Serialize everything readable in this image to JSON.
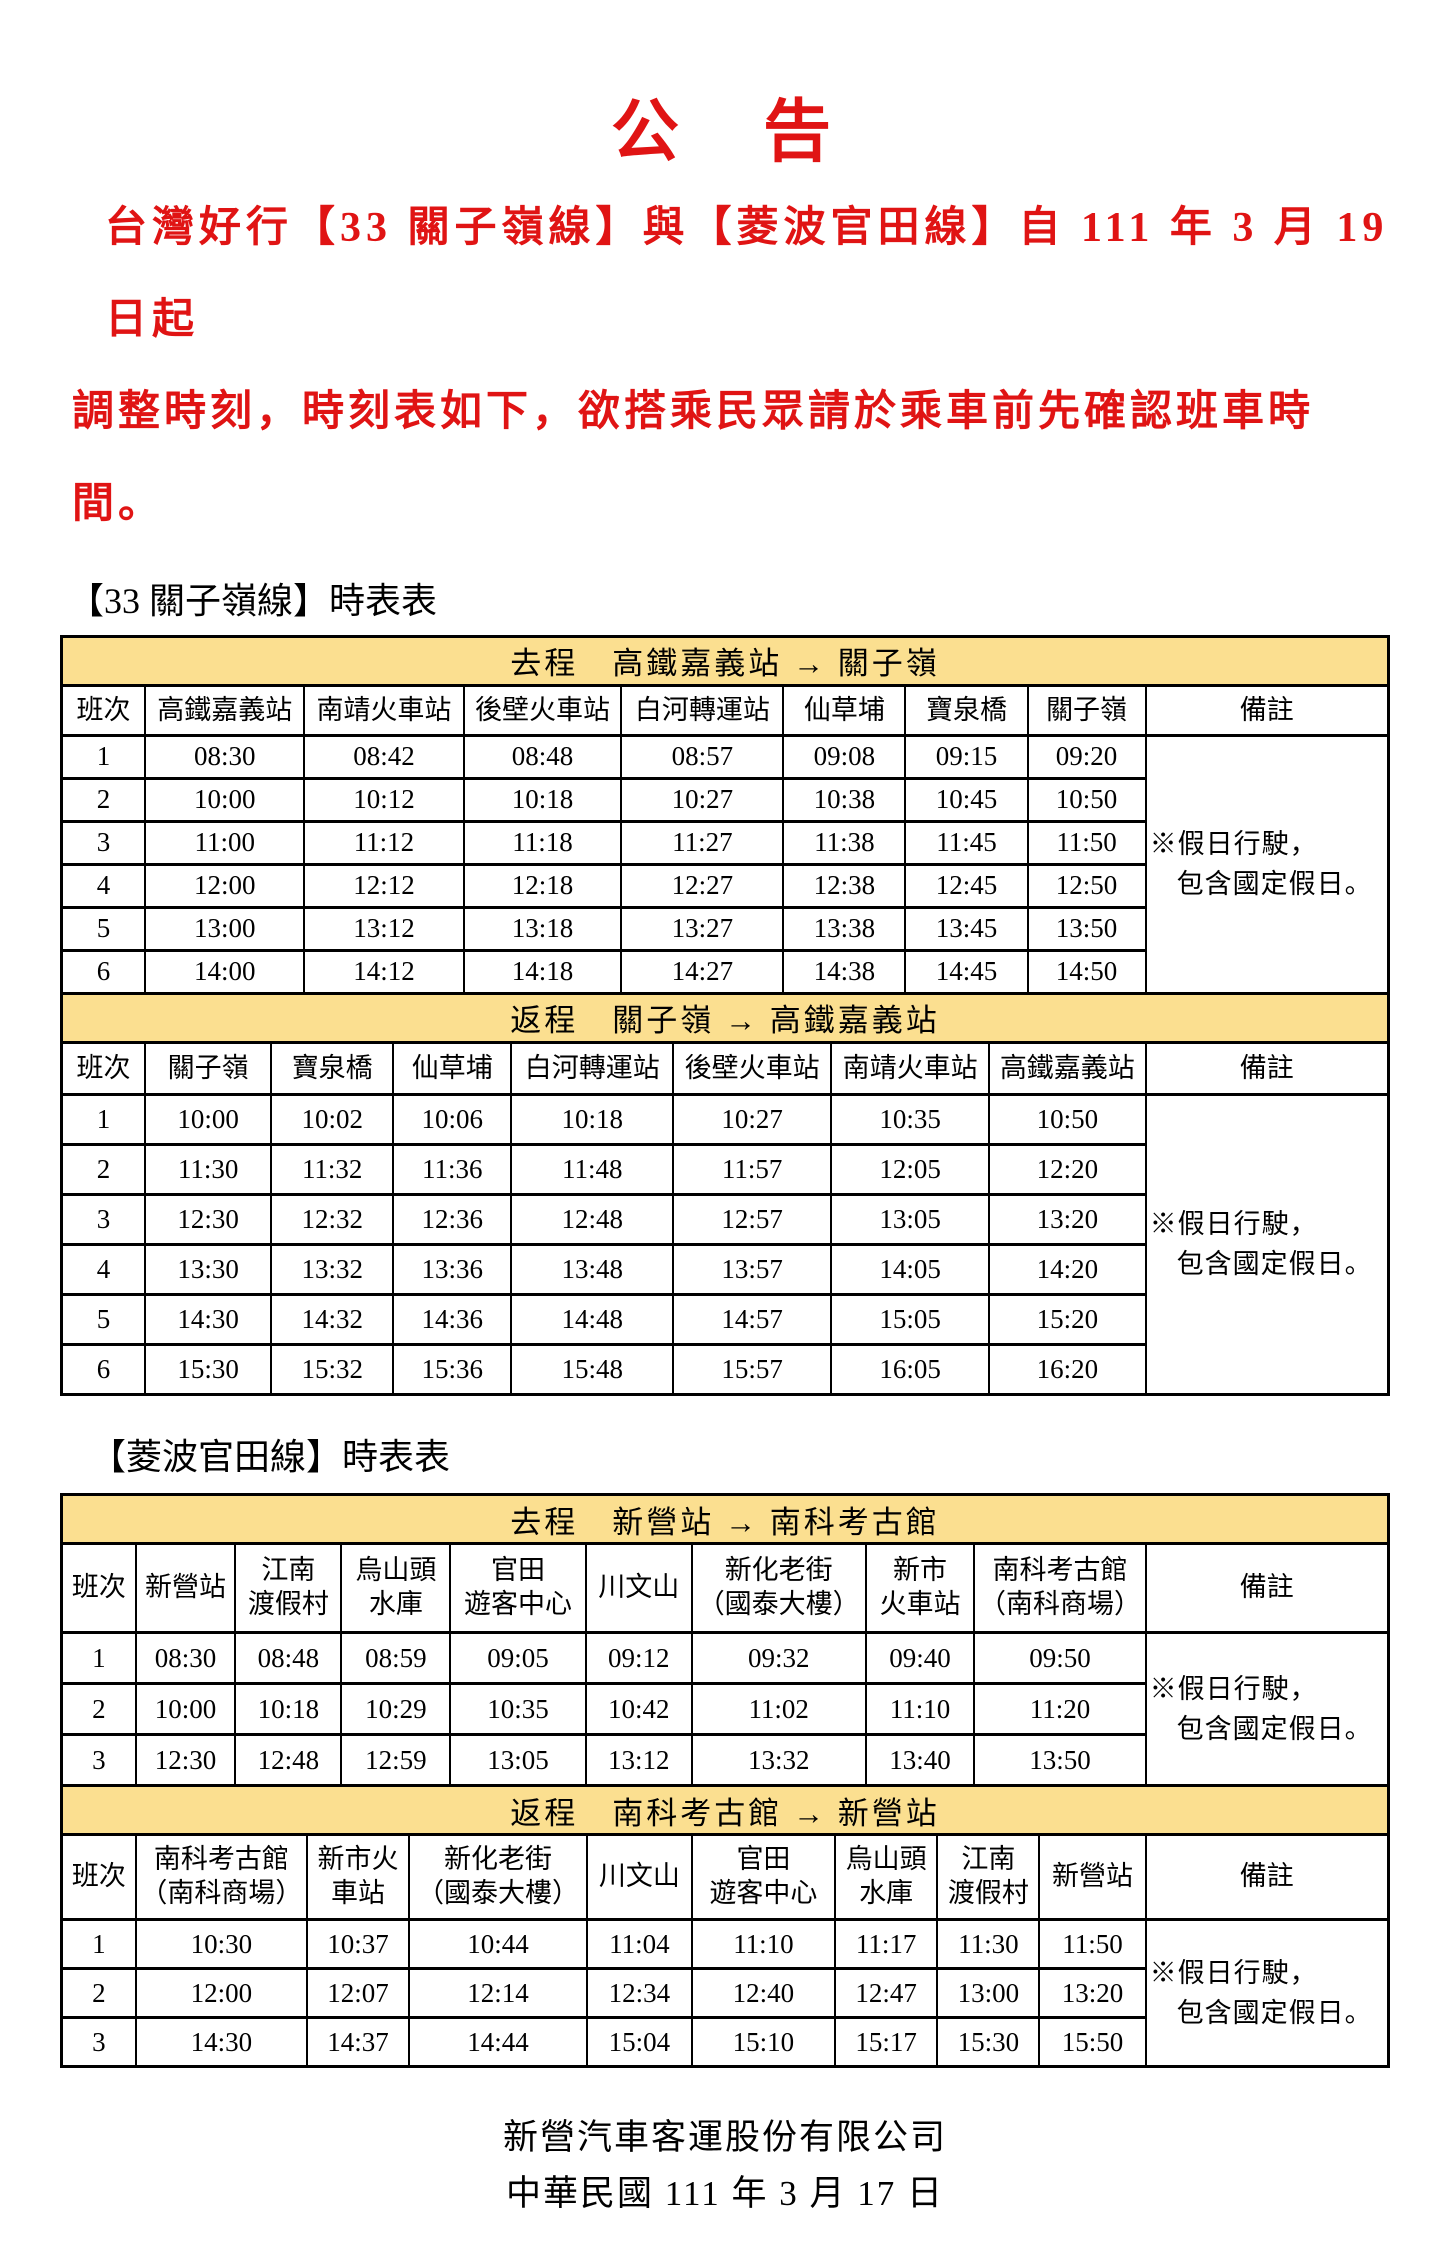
{
  "notice": {
    "title": "公　告",
    "intro": [
      "台灣好行【33 關子嶺線】與【菱波官田線】自 111 年 3 月 19 日起",
      "調整時刻，時刻表如下，欲搭乘民眾請於乘車前先確認班車時間。"
    ],
    "footer": {
      "company": "新營汽車客運股份有限公司",
      "date": "中華民國 111 年 3 月 17 日"
    },
    "colors": {
      "accent_red": "#e01414",
      "banner_yellow": "#fbdf90"
    }
  },
  "route33": {
    "heading": "【33 關子嶺線】時表表",
    "outbound": {
      "banner": "去程　高鐵嘉義站 → 關子嶺",
      "headers": [
        "班次",
        "高鐵嘉義站",
        "南靖火車站",
        "後壁火車站",
        "白河轉運站",
        "仙草埔",
        "寶泉橋",
        "關子嶺",
        "備註"
      ],
      "rows": [
        [
          "1",
          "08:30",
          "08:42",
          "08:48",
          "08:57",
          "09:08",
          "09:15",
          "09:20"
        ],
        [
          "2",
          "10:00",
          "10:12",
          "10:18",
          "10:27",
          "10:38",
          "10:45",
          "10:50"
        ],
        [
          "3",
          "11:00",
          "11:12",
          "11:18",
          "11:27",
          "11:38",
          "11:45",
          "11:50"
        ],
        [
          "4",
          "12:00",
          "12:12",
          "12:18",
          "12:27",
          "12:38",
          "12:45",
          "12:50"
        ],
        [
          "5",
          "13:00",
          "13:12",
          "13:18",
          "13:27",
          "13:38",
          "13:45",
          "13:50"
        ],
        [
          "6",
          "14:00",
          "14:12",
          "14:18",
          "14:27",
          "14:38",
          "14:45",
          "14:50"
        ]
      ],
      "remark": [
        "※假日行駛，",
        "包含國定假日。"
      ]
    },
    "inbound": {
      "banner": "返程　關子嶺 → 高鐵嘉義站",
      "headers": [
        "班次",
        "關子嶺",
        "寶泉橋",
        "仙草埔",
        "白河轉運站",
        "後壁火車站",
        "南靖火車站",
        "高鐵嘉義站",
        "備註"
      ],
      "rows": [
        [
          "1",
          "10:00",
          "10:02",
          "10:06",
          "10:18",
          "10:27",
          "10:35",
          "10:50"
        ],
        [
          "2",
          "11:30",
          "11:32",
          "11:36",
          "11:48",
          "11:57",
          "12:05",
          "12:20"
        ],
        [
          "3",
          "12:30",
          "12:32",
          "12:36",
          "12:48",
          "12:57",
          "13:05",
          "13:20"
        ],
        [
          "4",
          "13:30",
          "13:32",
          "13:36",
          "13:48",
          "13:57",
          "14:05",
          "14:20"
        ],
        [
          "5",
          "14:30",
          "14:32",
          "14:36",
          "14:48",
          "14:57",
          "15:05",
          "15:20"
        ],
        [
          "6",
          "15:30",
          "15:32",
          "15:36",
          "15:48",
          "15:57",
          "16:05",
          "16:20"
        ]
      ],
      "remark": [
        "※假日行駛，",
        "包含國定假日。"
      ]
    }
  },
  "routeLingbo": {
    "heading": "【菱波官田線】時表表",
    "outbound": {
      "banner": "去程　新營站 → 南科考古館",
      "headers": [
        "班次",
        "新營站",
        "江南\n渡假村",
        "烏山頭\n水庫",
        "官田\n遊客中心",
        "川文山",
        "新化老街\n（國泰大樓）",
        "新市\n火車站",
        "南科考古館\n（南科商場）",
        "備註"
      ],
      "rows": [
        [
          "1",
          "08:30",
          "08:48",
          "08:59",
          "09:05",
          "09:12",
          "09:32",
          "09:40",
          "09:50"
        ],
        [
          "2",
          "10:00",
          "10:18",
          "10:29",
          "10:35",
          "10:42",
          "11:02",
          "11:10",
          "11:20"
        ],
        [
          "3",
          "12:30",
          "12:48",
          "12:59",
          "13:05",
          "13:12",
          "13:32",
          "13:40",
          "13:50"
        ]
      ],
      "remark": [
        "※假日行駛，",
        "包含國定假日。"
      ]
    },
    "inbound": {
      "banner": "返程　南科考古館 → 新營站",
      "headers": [
        "班次",
        "南科考古館\n（南科商場）",
        "新市火\n車站",
        "新化老街\n（國泰大樓）",
        "川文山",
        "官田\n遊客中心",
        "烏山頭\n水庫",
        "江南\n渡假村",
        "新營站",
        "備註"
      ],
      "rows": [
        [
          "1",
          "10:30",
          "10:37",
          "10:44",
          "11:04",
          "11:10",
          "11:17",
          "11:30",
          "11:50"
        ],
        [
          "2",
          "12:00",
          "12:07",
          "12:14",
          "12:34",
          "12:40",
          "12:47",
          "13:00",
          "13:20"
        ],
        [
          "3",
          "14:30",
          "14:37",
          "14:44",
          "15:04",
          "15:10",
          "15:17",
          "15:30",
          "15:50"
        ]
      ],
      "remark": [
        "※假日行駛，",
        "包含國定假日。"
      ]
    }
  }
}
